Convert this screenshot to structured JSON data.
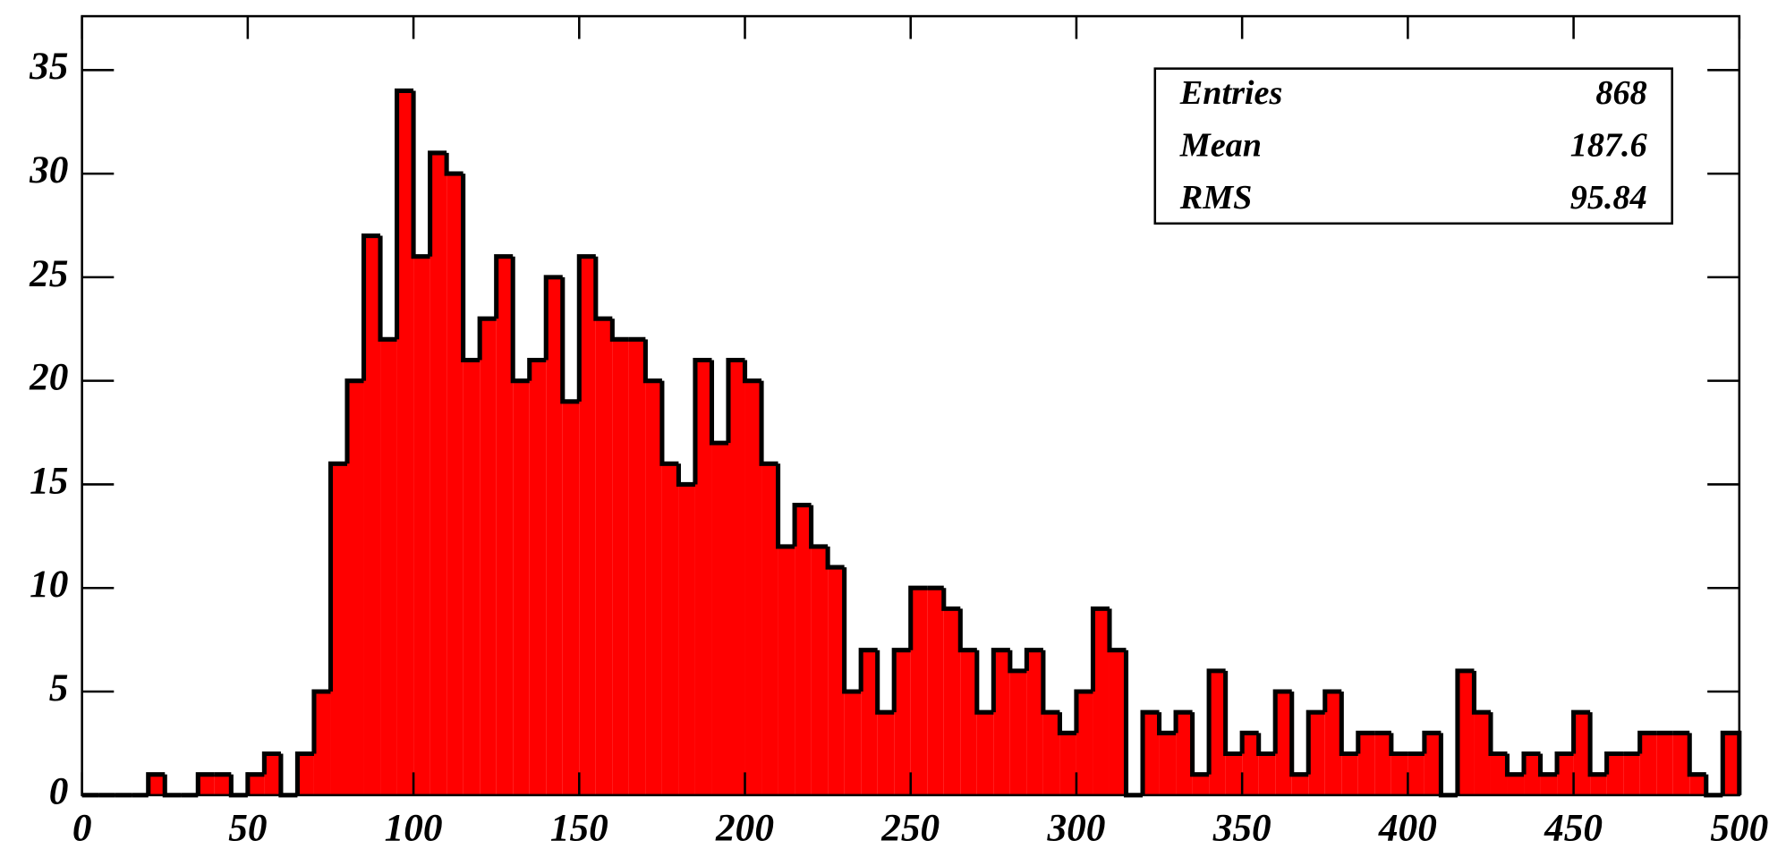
{
  "chart_data": {
    "type": "histogram",
    "bins": [
      0,
      5,
      10,
      15,
      20,
      25,
      30,
      35,
      40,
      45,
      50,
      55,
      60,
      65,
      70,
      75,
      80,
      85,
      90,
      95,
      100,
      105,
      110,
      115,
      120,
      125,
      130,
      135,
      140,
      145,
      150,
      155,
      160,
      165,
      170,
      175,
      180,
      185,
      190,
      195,
      200,
      205,
      210,
      215,
      220,
      225,
      230,
      235,
      240,
      245,
      250,
      255,
      260,
      265,
      270,
      275,
      280,
      285,
      290,
      295,
      300,
      305,
      310,
      315,
      320,
      325,
      330,
      335,
      340,
      345,
      350,
      355,
      360,
      365,
      370,
      375,
      380,
      385,
      390,
      395,
      400,
      405,
      410,
      415,
      420,
      425,
      430,
      435,
      440,
      445,
      450,
      455,
      460,
      465,
      470,
      475,
      480,
      485,
      490,
      495,
      500
    ],
    "values": [
      0,
      0,
      0,
      0,
      1,
      0,
      0,
      1,
      1,
      0,
      1,
      2,
      0,
      2,
      5,
      16,
      20,
      27,
      22,
      34,
      26,
      31,
      30,
      21,
      23,
      26,
      20,
      21,
      25,
      19,
      26,
      23,
      22,
      22,
      20,
      16,
      15,
      21,
      17,
      21,
      20,
      16,
      12,
      14,
      12,
      11,
      5,
      7,
      4,
      7,
      10,
      10,
      9,
      7,
      4,
      7,
      6,
      7,
      4,
      3,
      5,
      9,
      7,
      0,
      4,
      3,
      4,
      1,
      6,
      2,
      3,
      2,
      5,
      1,
      4,
      5,
      2,
      3,
      3,
      2,
      2,
      3,
      0,
      6,
      4,
      2,
      1,
      2,
      1,
      2,
      4,
      1,
      2,
      2,
      3,
      3,
      3,
      1,
      0,
      3
    ],
    "color": "#ff0000",
    "xlim": [
      0,
      500
    ],
    "xticks": [
      0,
      50,
      100,
      150,
      200,
      250,
      300,
      350,
      400,
      450,
      500
    ],
    "ylim": [
      0,
      37.6
    ],
    "yticks": [
      0,
      5,
      10,
      15,
      20,
      25,
      30,
      35
    ],
    "stats": [
      {
        "label": "Entries",
        "value": 868
      },
      {
        "label": "Mean",
        "value": 187.6
      },
      {
        "label": "RMS",
        "value": 95.84
      }
    ]
  }
}
